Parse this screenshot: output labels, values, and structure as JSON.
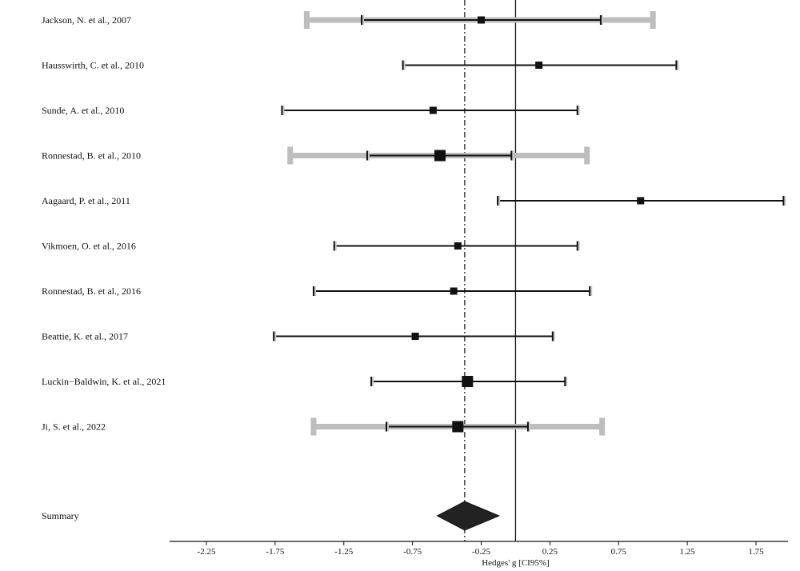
{
  "chart_data": {
    "type": "forest",
    "xlabel": "Hedges' g [CI95%]",
    "xlim": [
      -2.45,
      2.05
    ],
    "xticks": [
      -2.25,
      -1.75,
      -1.25,
      -0.75,
      -0.25,
      0.25,
      0.75,
      1.25,
      1.75
    ],
    "xtick_labels": [
      "-2.25",
      "-1.75",
      "-1.25",
      "-0.75",
      "-0.25",
      "0.25",
      "0.75",
      "1.25",
      "1.75"
    ],
    "reference_line": 0,
    "summary_line": -0.37,
    "studies": [
      {
        "label": "Jackson, N. et al., 2007",
        "estimate": -0.25,
        "ci_lower": -1.12,
        "ci_upper": 0.62,
        "pi_lower": -1.52,
        "pi_upper": 1.0,
        "weight": "small"
      },
      {
        "label": "Hausswirth, C. et al., 2010",
        "estimate": 0.17,
        "ci_lower": -0.82,
        "ci_upper": 1.17,
        "weight": "small"
      },
      {
        "label": "Sunde, A. et al., 2010",
        "estimate": -0.6,
        "ci_lower": -1.7,
        "ci_upper": 0.45,
        "weight": "small"
      },
      {
        "label": "Ronnestad, B. et al., 2010",
        "estimate": -0.55,
        "ci_lower": -1.08,
        "ci_upper": -0.03,
        "pi_lower": -1.64,
        "pi_upper": 0.52,
        "weight": "large"
      },
      {
        "label": "Aagaard, P. et al., 2011",
        "estimate": 0.91,
        "ci_lower": -0.13,
        "ci_upper": 1.95,
        "weight": "small"
      },
      {
        "label": "Vikmoen, O. et al., 2016",
        "estimate": -0.42,
        "ci_lower": -1.32,
        "ci_upper": 0.45,
        "weight": "small"
      },
      {
        "label": "Ronnestad, B. et al., 2016",
        "estimate": -0.45,
        "ci_lower": -1.47,
        "ci_upper": 0.54,
        "weight": "small"
      },
      {
        "label": "Beattie, K. et al., 2017",
        "estimate": -0.73,
        "ci_lower": -1.76,
        "ci_upper": 0.27,
        "weight": "small"
      },
      {
        "label": "Luckin−Baldwin, K. et al., 2021",
        "estimate": -0.35,
        "ci_lower": -1.05,
        "ci_upper": 0.36,
        "weight": "large"
      },
      {
        "label": "Ji, S. et al., 2022",
        "estimate": -0.42,
        "ci_lower": -0.94,
        "ci_upper": 0.09,
        "pi_lower": -1.47,
        "pi_upper": 0.63,
        "weight": "large"
      }
    ],
    "summary": {
      "label": "Summary",
      "estimate": -0.37,
      "ci_lower": -0.57,
      "ci_upper": -0.12
    }
  }
}
